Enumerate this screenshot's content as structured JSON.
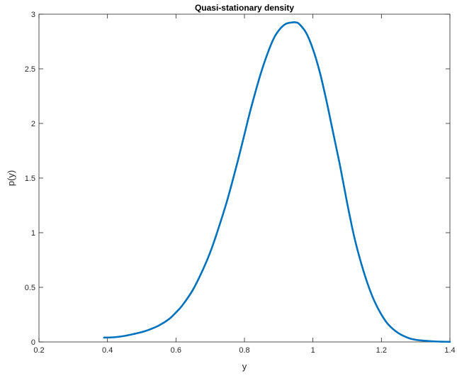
{
  "chart_data": {
    "type": "line",
    "title": "Quasi-stationary density",
    "xlabel": "y",
    "ylabel": "p(y)",
    "xlim": [
      0.2,
      1.4
    ],
    "ylim": [
      0,
      3
    ],
    "xticks": [
      0.2,
      0.4,
      0.6,
      0.8,
      1.0,
      1.2,
      1.4
    ],
    "xtick_labels": [
      "0.2",
      "0.4",
      "0.6",
      "0.8",
      "1",
      "1.2",
      "1.4"
    ],
    "yticks": [
      0,
      0.5,
      1,
      1.5,
      2,
      2.5,
      3
    ],
    "ytick_labels": [
      "0",
      "0.5",
      "1",
      "1.5",
      "2",
      "2.5",
      "3"
    ],
    "grid": false,
    "line_color": "#0072BD",
    "series": [
      {
        "x": [
          0.39,
          0.42,
          0.45,
          0.48,
          0.5,
          0.52,
          0.55,
          0.58,
          0.6,
          0.62,
          0.65,
          0.68,
          0.7,
          0.72,
          0.75,
          0.78,
          0.8,
          0.82,
          0.85,
          0.88,
          0.9,
          0.92,
          0.94,
          0.95,
          0.96,
          0.98,
          1.0,
          1.02,
          1.04,
          1.06,
          1.08,
          1.1,
          1.12,
          1.14,
          1.16,
          1.18,
          1.2,
          1.22,
          1.25,
          1.28,
          1.3,
          1.33,
          1.36,
          1.38,
          1.4
        ],
        "y": [
          0.04,
          0.043,
          0.055,
          0.075,
          0.09,
          0.11,
          0.15,
          0.21,
          0.27,
          0.34,
          0.48,
          0.67,
          0.82,
          1.0,
          1.3,
          1.65,
          1.9,
          2.15,
          2.48,
          2.74,
          2.85,
          2.91,
          2.925,
          2.925,
          2.91,
          2.83,
          2.68,
          2.47,
          2.2,
          1.9,
          1.6,
          1.27,
          0.97,
          0.73,
          0.53,
          0.37,
          0.25,
          0.16,
          0.08,
          0.035,
          0.02,
          0.01,
          0.004,
          0.002,
          0.001
        ]
      }
    ]
  }
}
